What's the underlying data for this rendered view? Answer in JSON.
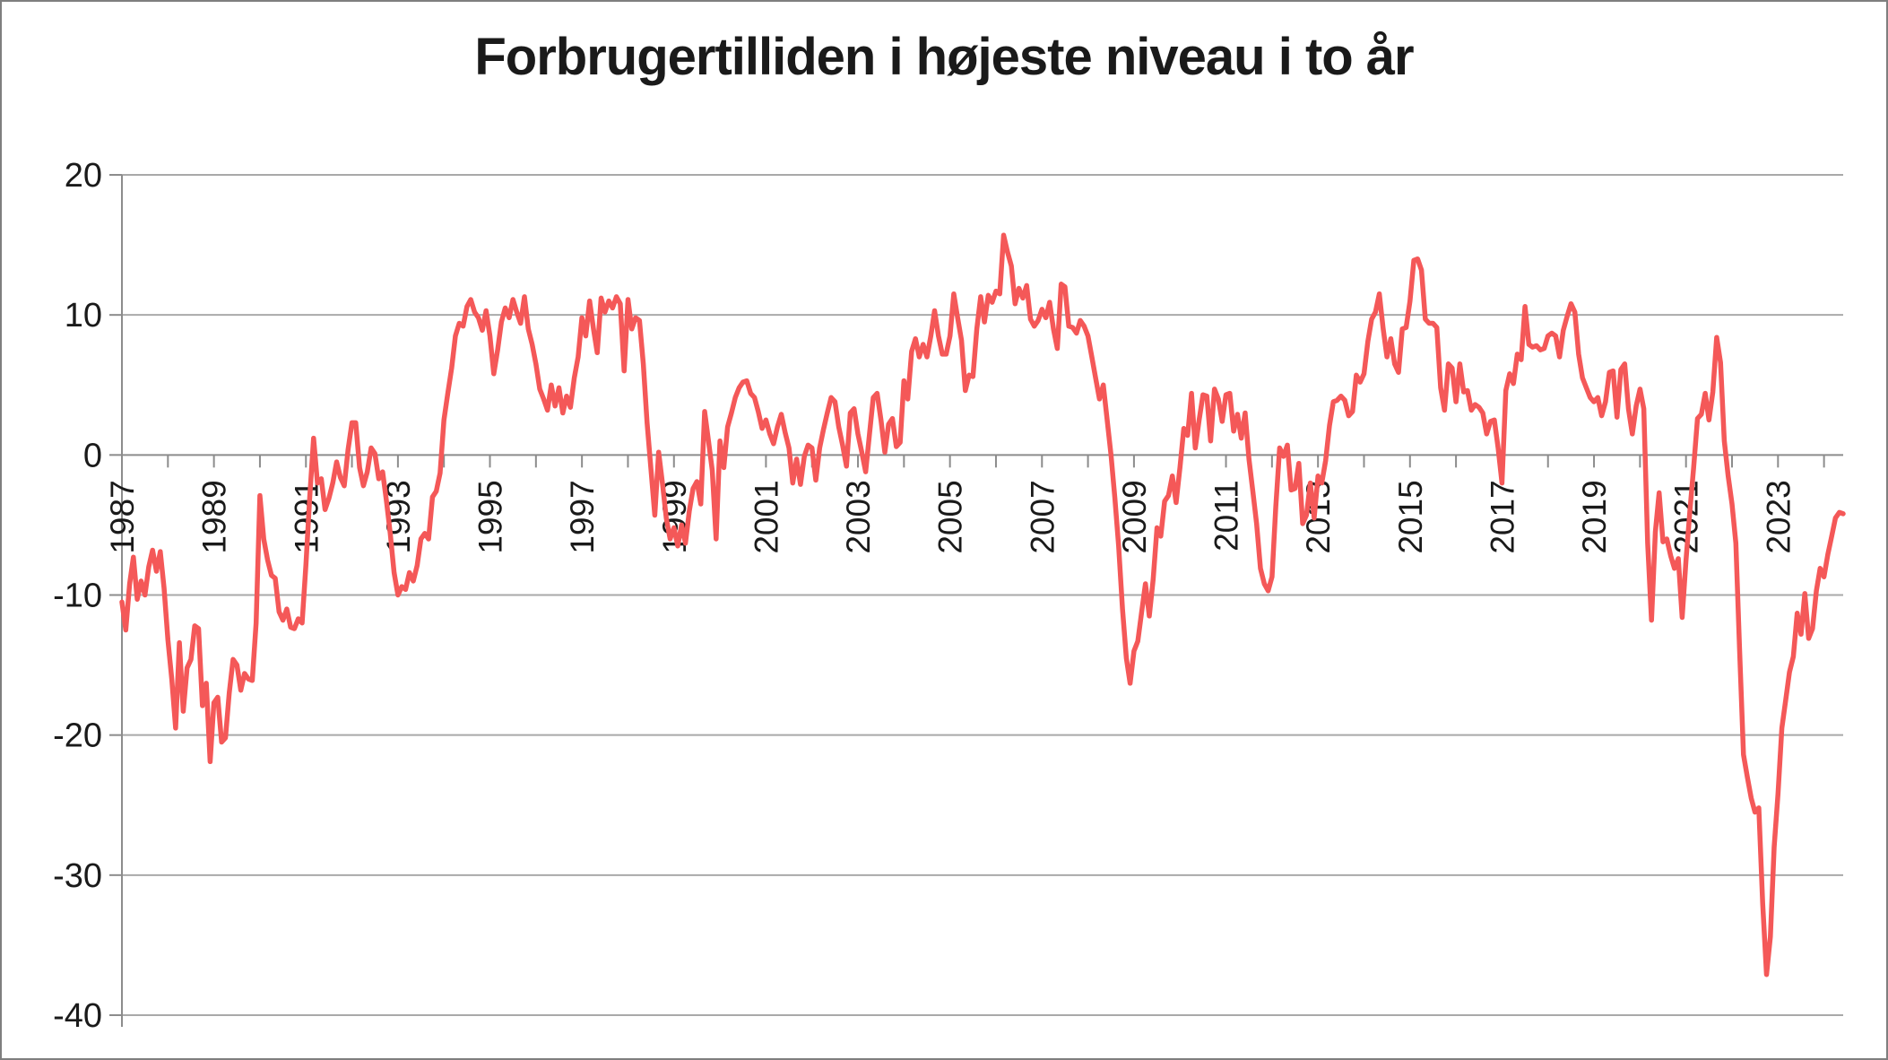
{
  "page": {
    "background_color": "#ffffff",
    "frame_color": "#7f7f7f",
    "grid_color": "#a9a9a9",
    "axis_color": "#8c8c8c",
    "text_color": "#1a1a1a"
  },
  "chart_data": {
    "type": "line",
    "title": "Forbrugertilliden i højeste niveau i to år",
    "line_color": "#f45858",
    "grid": true,
    "x_start": "1987-01",
    "frequency": "monthly",
    "ylim": [
      -40,
      20
    ],
    "y_tick_values": [
      20,
      10,
      0,
      -10,
      -20,
      -30,
      -40
    ],
    "y_tick_labels": [
      "20",
      "10",
      "0",
      "-10",
      "-20",
      "-30",
      "-40"
    ],
    "x_tick_years_start": 1987,
    "x_tick_years_end": 2024,
    "x_label_years": [
      "1987",
      "1989",
      "1991",
      "1993",
      "1995",
      "1997",
      "1999",
      "2001",
      "2003",
      "2005",
      "2007",
      "2009",
      "2011",
      "2013",
      "2015",
      "2017",
      "2019",
      "2021",
      "2023"
    ],
    "values": [
      -10.5,
      -12.5,
      -9.2,
      -7.3,
      -10.3,
      -9.0,
      -10.0,
      -8.0,
      -6.8,
      -8.3,
      -6.9,
      -9.5,
      -13.2,
      -16.0,
      -19.5,
      -13.4,
      -18.3,
      -15.2,
      -14.6,
      -12.2,
      -12.4,
      -17.9,
      -16.3,
      -21.9,
      -17.7,
      -17.3,
      -20.5,
      -20.2,
      -17.0,
      -14.6,
      -15.0,
      -16.8,
      -15.6,
      -16.0,
      -16.1,
      -12.0,
      -2.9,
      -6.0,
      -7.5,
      -8.6,
      -8.8,
      -11.2,
      -11.8,
      -11.0,
      -12.3,
      -12.4,
      -11.7,
      -12.0,
      -7.8,
      -3.0,
      1.2,
      -2.0,
      -1.7,
      -3.9,
      -3.1,
      -2.0,
      -0.5,
      -1.6,
      -2.2,
      0.4,
      2.3,
      2.3,
      -0.9,
      -2.2,
      -1.2,
      0.5,
      0.1,
      -1.7,
      -1.2,
      -3.3,
      -5.6,
      -8.4,
      -10.0,
      -9.4,
      -9.6,
      -8.4,
      -9.0,
      -7.9,
      -6.0,
      -5.6,
      -6.0,
      -3.0,
      -2.6,
      -1.3,
      2.5,
      4.4,
      6.2,
      8.5,
      9.4,
      9.2,
      10.6,
      11.1,
      10.2,
      9.8,
      8.9,
      10.3,
      8.5,
      5.8,
      7.5,
      9.5,
      10.5,
      9.8,
      11.1,
      10.2,
      9.4,
      11.3,
      9.0,
      7.9,
      6.5,
      4.7,
      4.0,
      3.2,
      5.0,
      3.5,
      4.8,
      3.0,
      4.2,
      3.4,
      5.5,
      7.0,
      9.8,
      8.5,
      11.0,
      9.0,
      7.3,
      11.2,
      10.2,
      11.0,
      10.5,
      11.3,
      10.8,
      6.0,
      11.1,
      9.0,
      9.8,
      9.6,
      6.5,
      2.3,
      -1.0,
      -4.3,
      0.2,
      -2.0,
      -4.5,
      -6.0,
      -5.2,
      -6.5,
      -5.0,
      -6.3,
      -4.0,
      -2.4,
      -1.9,
      -3.5,
      3.1,
      1.0,
      -1.1,
      -6.0,
      1.0,
      -0.9,
      2.0,
      3.0,
      4.1,
      4.8,
      5.2,
      5.3,
      4.4,
      4.1,
      3.1,
      1.9,
      2.5,
      1.5,
      0.8,
      2.0,
      2.9,
      1.6,
      0.5,
      -2.0,
      -0.3,
      -2.1,
      -0.1,
      0.7,
      0.5,
      -1.8,
      0.5,
      1.8,
      3.0,
      4.1,
      3.8,
      2.0,
      0.7,
      -0.8,
      3.0,
      3.3,
      1.5,
      0.2,
      -1.2,
      1.5,
      4.1,
      4.4,
      2.5,
      0.2,
      2.2,
      2.6,
      0.6,
      0.9,
      5.3,
      4.0,
      7.4,
      8.3,
      7.0,
      7.9,
      7.0,
      8.5,
      10.3,
      8.5,
      7.2,
      7.2,
      8.5,
      11.5,
      9.8,
      8.2,
      4.6,
      5.7,
      5.6,
      9.0,
      11.3,
      9.5,
      11.4,
      10.9,
      11.7,
      11.5,
      15.7,
      14.5,
      13.5,
      10.8,
      11.9,
      11.2,
      12.1,
      9.7,
      9.2,
      9.6,
      10.4,
      9.8,
      10.9,
      9.0,
      7.6,
      12.2,
      12.0,
      9.2,
      9.1,
      8.7,
      9.6,
      9.2,
      8.5,
      7.0,
      5.5,
      4.0,
      5.0,
      2.5,
      0.0,
      -3.0,
      -6.5,
      -11.0,
      -14.5,
      -16.3,
      -14.0,
      -13.3,
      -11.2,
      -9.2,
      -11.5,
      -8.9,
      -5.2,
      -5.8,
      -3.3,
      -2.9,
      -1.5,
      -3.4,
      -0.9,
      1.9,
      1.4,
      4.4,
      0.5,
      2.5,
      4.3,
      4.2,
      1.0,
      4.7,
      4.0,
      2.4,
      4.3,
      4.4,
      1.7,
      2.9,
      1.2,
      3.0,
      -0.3,
      -2.6,
      -4.9,
      -8.1,
      -9.2,
      -9.7,
      -8.7,
      -3.7,
      0.5,
      -0.1,
      0.7,
      -2.5,
      -2.4,
      -0.6,
      -4.9,
      -4.3,
      -2.0,
      -4.5,
      -1.5,
      -2.0,
      -0.4,
      2.1,
      3.8,
      3.9,
      4.2,
      3.9,
      2.8,
      3.1,
      5.7,
      5.2,
      5.8,
      8.1,
      9.7,
      10.2,
      11.5,
      9.0,
      7.0,
      8.3,
      6.5,
      5.9,
      9.0,
      9.1,
      11.0,
      13.9,
      14.0,
      13.2,
      9.7,
      9.4,
      9.4,
      9.1,
      4.8,
      3.2,
      6.5,
      6.2,
      3.8,
      6.5,
      4.5,
      4.6,
      3.2,
      3.6,
      3.4,
      3.0,
      1.5,
      2.4,
      2.5,
      0.5,
      -2.0,
      4.6,
      5.8,
      5.1,
      7.2,
      6.8,
      10.6,
      7.9,
      7.7,
      7.8,
      7.5,
      7.6,
      8.5,
      8.7,
      8.5,
      7.0,
      8.9,
      9.9,
      10.8,
      10.2,
      7.2,
      5.5,
      4.8,
      4.1,
      3.8,
      4.1,
      2.8,
      3.8,
      5.9,
      6.0,
      2.7,
      6.1,
      6.5,
      3.3,
      1.5,
      3.5,
      4.7,
      3.3,
      -6.3,
      -11.8,
      -5.5,
      -2.7,
      -6.2,
      -6.0,
      -7.2,
      -8.1,
      -7.4,
      -11.6,
      -7.5,
      -4.0,
      -0.9,
      2.6,
      2.9,
      4.4,
      2.5,
      4.5,
      8.4,
      6.6,
      1.0,
      -1.5,
      -3.5,
      -6.3,
      -14.0,
      -21.4,
      -23.0,
      -24.5,
      -25.5,
      -25.2,
      -32.0,
      -37.1,
      -34.4,
      -28.0,
      -24.2,
      -19.5,
      -17.5,
      -15.5,
      -14.4,
      -11.3,
      -12.8,
      -9.9,
      -13.1,
      -12.4,
      -9.7,
      -8.1,
      -8.7,
      -7.1,
      -5.8,
      -4.5,
      -4.1,
      -4.2
    ]
  }
}
